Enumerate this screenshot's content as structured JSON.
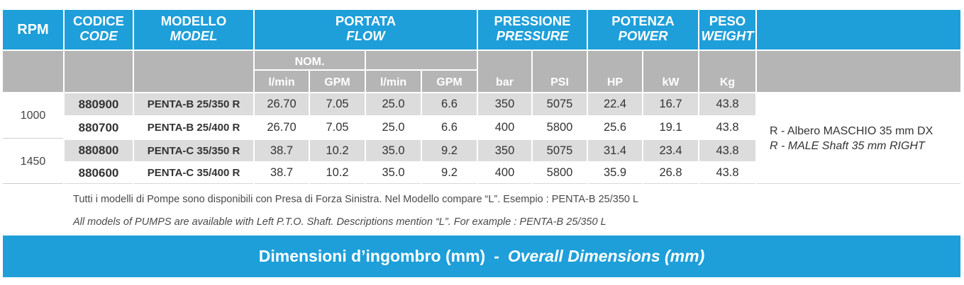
{
  "colors": {
    "header_blue": "#1e9fd9",
    "subheader_grey": "#b5b5b5",
    "row_shade": "#dcdcdc",
    "text": "#333333"
  },
  "header": {
    "rpm": "RPM",
    "code": {
      "it": "CODICE",
      "en": "CODE"
    },
    "model": {
      "it": "MODELLO",
      "en": "MODEL"
    },
    "flow": {
      "it": "PORTATA",
      "en": "FLOW"
    },
    "pressure": {
      "it": "PRESSIONE",
      "en": "PRESSURE"
    },
    "power": {
      "it": "POTENZA",
      "en": "POWER"
    },
    "weight": {
      "it": "PESO",
      "en": "WEIGHT"
    }
  },
  "subheader": {
    "nominal": "NOM.",
    "flow_nom_lmin": "l/min",
    "flow_nom_gpm": "GPM",
    "flow_lmin": "l/min",
    "flow_gpm": "GPM",
    "pressure_bar": "bar",
    "pressure_psi": "PSI",
    "power_hp": "HP",
    "power_kw": "kW",
    "weight_kg": "Kg"
  },
  "groups": [
    {
      "rpm": "1000",
      "rows": [
        {
          "code": "880900",
          "model": "PENTA-B 25/350 R",
          "flow_nom_lmin": "26.70",
          "flow_nom_gpm": "7.05",
          "flow_lmin": "25.0",
          "flow_gpm": "6.6",
          "pressure_bar": "350",
          "pressure_psi": "5075",
          "power_hp": "22.4",
          "power_kw": "16.7",
          "weight_kg": "43.8"
        },
        {
          "code": "880700",
          "model": "PENTA-B 25/400 R",
          "flow_nom_lmin": "26.70",
          "flow_nom_gpm": "7.05",
          "flow_lmin": "25.0",
          "flow_gpm": "6.6",
          "pressure_bar": "400",
          "pressure_psi": "5800",
          "power_hp": "25.6",
          "power_kw": "19.1",
          "weight_kg": "43.8"
        }
      ]
    },
    {
      "rpm": "1450",
      "rows": [
        {
          "code": "880800",
          "model": "PENTA-C 35/350 R",
          "flow_nom_lmin": "38.7",
          "flow_nom_gpm": "10.2",
          "flow_lmin": "35.0",
          "flow_gpm": "9.2",
          "pressure_bar": "350",
          "pressure_psi": "5075",
          "power_hp": "31.4",
          "power_kw": "23.4",
          "weight_kg": "43.8"
        },
        {
          "code": "880600",
          "model": "PENTA-C 35/400 R",
          "flow_nom_lmin": "38.7",
          "flow_nom_gpm": "10.2",
          "flow_lmin": "35.0",
          "flow_gpm": "9.2",
          "pressure_bar": "400",
          "pressure_psi": "5800",
          "power_hp": "35.9",
          "power_kw": "26.8",
          "weight_kg": "43.8"
        }
      ]
    }
  ],
  "shaft_note": {
    "it": "R - Albero MASCHIO 35 mm DX",
    "en": "R - MALE Shaft 35 mm RIGHT"
  },
  "footnotes": {
    "it": "Tutti i modelli di Pompe sono disponibili con Presa di Forza Sinistra. Nel Modello compare “L”. Esempio : PENTA-B 25/350 L",
    "en": "All models of PUMPS are available with Left P.T.O. Shaft. Descriptions mention “L”. For example : PENTA-B 25/350 L"
  },
  "banner": {
    "it": "Dimensioni d’ingombro (mm)",
    "separator": "-",
    "en": "Overall Dimensions (mm)"
  }
}
